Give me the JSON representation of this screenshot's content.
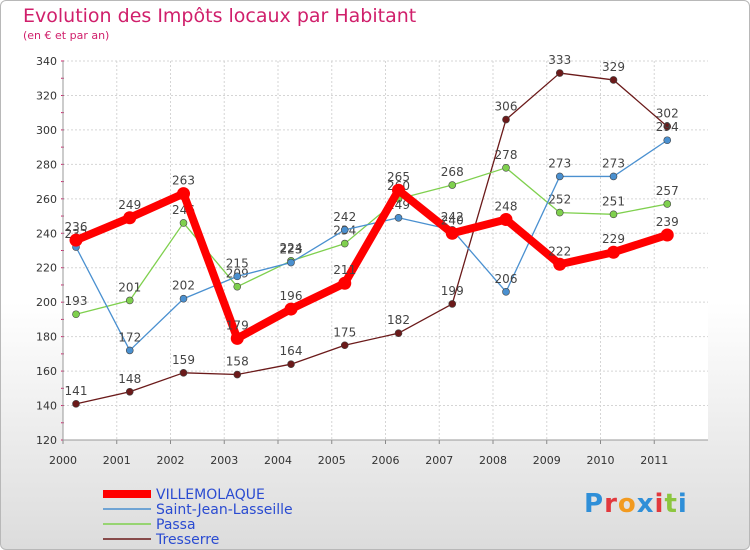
{
  "chart_data": {
    "type": "line",
    "title": "Evolution des Impôts locaux par Habitant",
    "subtitle": "(en € et par an)",
    "categories": [
      "2000",
      "2001",
      "2002",
      "2003",
      "2004",
      "2005",
      "2006",
      "2007",
      "2008",
      "2009",
      "2010",
      "2011"
    ],
    "ylim": [
      120,
      340
    ],
    "yticks": [
      120,
      140,
      160,
      180,
      200,
      220,
      240,
      260,
      280,
      300,
      320,
      340
    ],
    "grid": true,
    "legend_position": "bottom-left",
    "series": [
      {
        "name": "VILLEMOLAQUE",
        "color": "#ff0000",
        "values": [
          236,
          249,
          263,
          179,
          196,
          211,
          265,
          240,
          248,
          222,
          229,
          239
        ]
      },
      {
        "name": "Saint-Jean-Lasseille",
        "color": "#4a90d0",
        "values": [
          232,
          172,
          202,
          215,
          223,
          242,
          249,
          242,
          206,
          273,
          273,
          294
        ]
      },
      {
        "name": "Passa",
        "color": "#7fd04e",
        "values": [
          193,
          201,
          246,
          209,
          224,
          234,
          260,
          268,
          278,
          252,
          251,
          257
        ]
      },
      {
        "name": "Tresserre",
        "color": "#6b1a1a",
        "values": [
          141,
          148,
          159,
          158,
          164,
          175,
          182,
          199,
          306,
          333,
          329,
          302
        ]
      }
    ]
  },
  "logo": {
    "text": "Proxiti",
    "letters": [
      "P",
      "r",
      "o",
      "x",
      "i",
      "t",
      "i"
    ],
    "colors": [
      "#2f8fd8",
      "#e2383d",
      "#f29a1f",
      "#2f8fd8",
      "#e2383d",
      "#8cc63f",
      "#2f8fd8"
    ]
  }
}
